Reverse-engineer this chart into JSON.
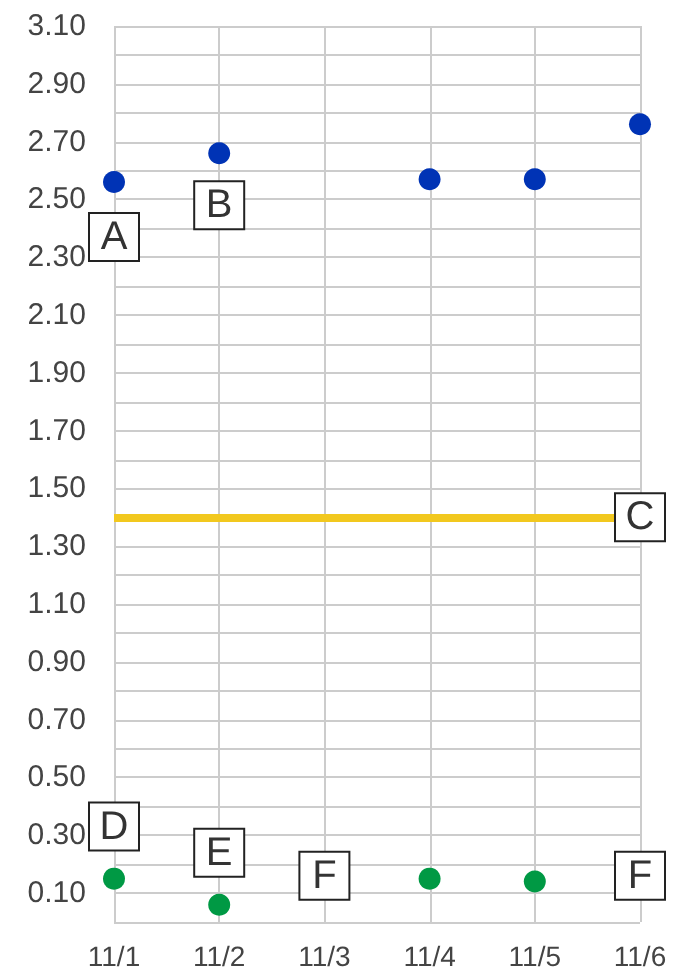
{
  "chart_data": {
    "type": "scatter",
    "categories": [
      "11/1",
      "11/2",
      "11/3",
      "11/4",
      "11/5",
      "11/6"
    ],
    "series": [
      {
        "color": "#0033b5",
        "values": [
          2.56,
          2.66,
          null,
          2.57,
          2.57,
          2.76
        ]
      },
      {
        "color": "#009944",
        "values": [
          0.15,
          0.06,
          null,
          0.15,
          0.14,
          null
        ]
      }
    ],
    "ylim": [
      0,
      3.1
    ],
    "yticks": [
      {
        "value": 0,
        "label": null
      },
      {
        "value": 0.1,
        "label": "0.10"
      },
      {
        "value": 0.2,
        "label": null
      },
      {
        "value": 0.3,
        "label": "0.30"
      },
      {
        "value": 0.4,
        "label": null
      },
      {
        "value": 0.5,
        "label": "0.50"
      },
      {
        "value": 0.6,
        "label": null
      },
      {
        "value": 0.7,
        "label": "0.70"
      },
      {
        "value": 0.8,
        "label": null
      },
      {
        "value": 0.9,
        "label": "0.90"
      },
      {
        "value": 1.0,
        "label": null
      },
      {
        "value": 1.1,
        "label": "1.10"
      },
      {
        "value": 1.2,
        "label": null
      },
      {
        "value": 1.3,
        "label": "1.30"
      },
      {
        "value": 1.4,
        "label": null
      },
      {
        "value": 1.5,
        "label": "1.50"
      },
      {
        "value": 1.6,
        "label": null
      },
      {
        "value": 1.7,
        "label": "1.70"
      },
      {
        "value": 1.8,
        "label": null
      },
      {
        "value": 1.9,
        "label": "1.90"
      },
      {
        "value": 2.0,
        "label": null
      },
      {
        "value": 2.1,
        "label": "2.10"
      },
      {
        "value": 2.2,
        "label": null
      },
      {
        "value": 2.3,
        "label": "2.30"
      },
      {
        "value": 2.4,
        "label": null
      },
      {
        "value": 2.5,
        "label": "2.50"
      },
      {
        "value": 2.6,
        "label": null
      },
      {
        "value": 2.7,
        "label": "2.70"
      },
      {
        "value": 2.8,
        "label": null
      },
      {
        "value": 2.9,
        "label": "2.90"
      },
      {
        "value": 3.0,
        "label": null
      },
      {
        "value": 3.1,
        "label": "3.10"
      }
    ],
    "grid": true,
    "marker": "circle",
    "ref_lines": [
      {
        "axis": "y",
        "value": 1.4,
        "color": "#f2c81e"
      }
    ],
    "annotations": [
      {
        "text": "A",
        "x": "11/1",
        "y": 2.37
      },
      {
        "text": "B",
        "x": "11/2",
        "y": 2.48
      },
      {
        "text": "C",
        "x": "11/6",
        "y": 1.4
      },
      {
        "text": "D",
        "x": "11/1",
        "y": 0.33
      },
      {
        "text": "E",
        "x": "11/2",
        "y": 0.24
      },
      {
        "text": "F",
        "x": "11/3",
        "y": 0.16
      },
      {
        "text": "F",
        "x": "11/6",
        "y": 0.16
      }
    ]
  }
}
